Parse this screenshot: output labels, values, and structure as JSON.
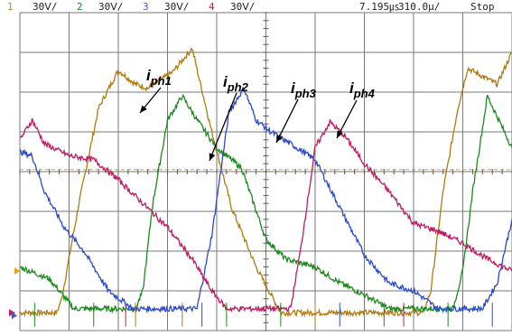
{
  "header": {
    "channels": [
      {
        "num": "1",
        "scale": "30Ⅴ/",
        "color": "#c08a1a"
      },
      {
        "num": "2",
        "scale": "30Ⅴ/",
        "color": "#1a8a1a"
      },
      {
        "num": "3",
        "scale": "30Ⅴ/",
        "color": "#3a5cd0"
      },
      {
        "num": "4",
        "scale": "30Ⅴ/",
        "color": "#c0206a"
      }
    ],
    "time_offset": "7.195㎲",
    "timebase": "310.0µ/",
    "run_state": "Stop"
  },
  "chart_data": {
    "type": "line",
    "xlim": [
      0,
      10
    ],
    "ylim": [
      -4,
      4
    ],
    "grid": true,
    "trigger_level": 0.05,
    "series": [
      {
        "name": "ph1",
        "color": "#b07a10",
        "x": [
          0,
          0.7,
          0.75,
          0.85,
          1.2,
          1.6,
          2.0,
          2.35,
          2.6,
          3.1,
          3.5,
          3.9,
          4.3,
          4.8,
          5.3,
          5.45,
          5.5,
          5.6,
          5.9,
          6.3,
          7.0,
          7.6,
          8.0,
          8.2,
          8.35,
          8.6,
          8.9,
          9.1,
          9.4,
          9.7,
          10
        ],
        "y": [
          -3.55,
          -3.55,
          -3.55,
          -3.2,
          -0.8,
          1.6,
          2.55,
          2.2,
          2.1,
          2.5,
          3.1,
          1.0,
          -0.9,
          -2.4,
          -3.55,
          -3.55,
          -3.55,
          -3.55,
          -3.55,
          -3.55,
          -3.55,
          -3.55,
          -3.55,
          -3.55,
          -3.0,
          -0.5,
          1.6,
          2.6,
          2.4,
          2.2,
          3.0
        ]
      },
      {
        "name": "ph2",
        "color": "#1a8a1a",
        "x": [
          0,
          0.6,
          1.1,
          1.6,
          2.0,
          2.35,
          2.5,
          2.7,
          3.0,
          3.3,
          3.6,
          4.0,
          4.5,
          5.0,
          5.4,
          6.0,
          6.5,
          7.0,
          7.5,
          7.7,
          7.8,
          8.3,
          8.8,
          9.0,
          9.2,
          9.5,
          10
        ],
        "y": [
          -2.4,
          -2.7,
          -3.45,
          -3.45,
          -3.45,
          -3.45,
          -3.0,
          -0.8,
          1.3,
          1.9,
          1.3,
          0.6,
          0.1,
          -1.7,
          -2.2,
          -2.4,
          -2.8,
          -3.1,
          -3.45,
          -3.45,
          -3.45,
          -3.45,
          -3.45,
          -2.5,
          -0.5,
          1.9,
          0.6
        ]
      },
      {
        "name": "ph3",
        "color": "#2a4acc",
        "x": [
          0,
          0.25,
          0.5,
          0.9,
          1.3,
          1.8,
          2.3,
          2.6,
          2.75,
          3.0,
          3.3,
          3.6,
          3.9,
          4.25,
          4.55,
          4.8,
          5.1,
          5.5,
          6.0,
          6.5,
          7.0,
          7.5,
          8.0,
          8.5,
          8.9,
          9.1,
          9.4,
          9.7,
          10
        ],
        "y": [
          0.5,
          0.4,
          -0.5,
          -1.4,
          -2.0,
          -3.0,
          -3.45,
          -3.45,
          -3.45,
          -3.45,
          -3.45,
          -3.45,
          -1.6,
          1.5,
          2.1,
          1.3,
          1.0,
          0.7,
          0.3,
          -0.9,
          -2.1,
          -2.8,
          -3.0,
          -3.45,
          -3.45,
          -3.45,
          -3.45,
          -2.8,
          -1.2
        ]
      },
      {
        "name": "ph4",
        "color": "#c01a62",
        "x": [
          0,
          0.25,
          0.5,
          1.0,
          1.5,
          2.0,
          2.5,
          3.0,
          3.5,
          3.9,
          4.2,
          4.6,
          5.0,
          5.3,
          5.5,
          5.7,
          6.0,
          6.3,
          6.6,
          7.0,
          7.5,
          8.0,
          8.5,
          9.0,
          9.5,
          10
        ],
        "y": [
          0.8,
          1.3,
          0.7,
          0.4,
          0.3,
          -0.2,
          -0.8,
          -1.4,
          -2.2,
          -3.0,
          -3.45,
          -3.45,
          -3.45,
          -3.45,
          -3.45,
          -2.0,
          0.6,
          1.25,
          0.9,
          0.2,
          -0.5,
          -1.3,
          -1.5,
          -1.8,
          -2.2,
          -2.5
        ]
      }
    ],
    "annotations": [
      {
        "base": "i",
        "sub": "ph1"
      },
      {
        "base": "i",
        "sub": "ph2"
      },
      {
        "base": "i",
        "sub": "ph3"
      },
      {
        "base": "i",
        "sub": "ph4"
      }
    ]
  }
}
